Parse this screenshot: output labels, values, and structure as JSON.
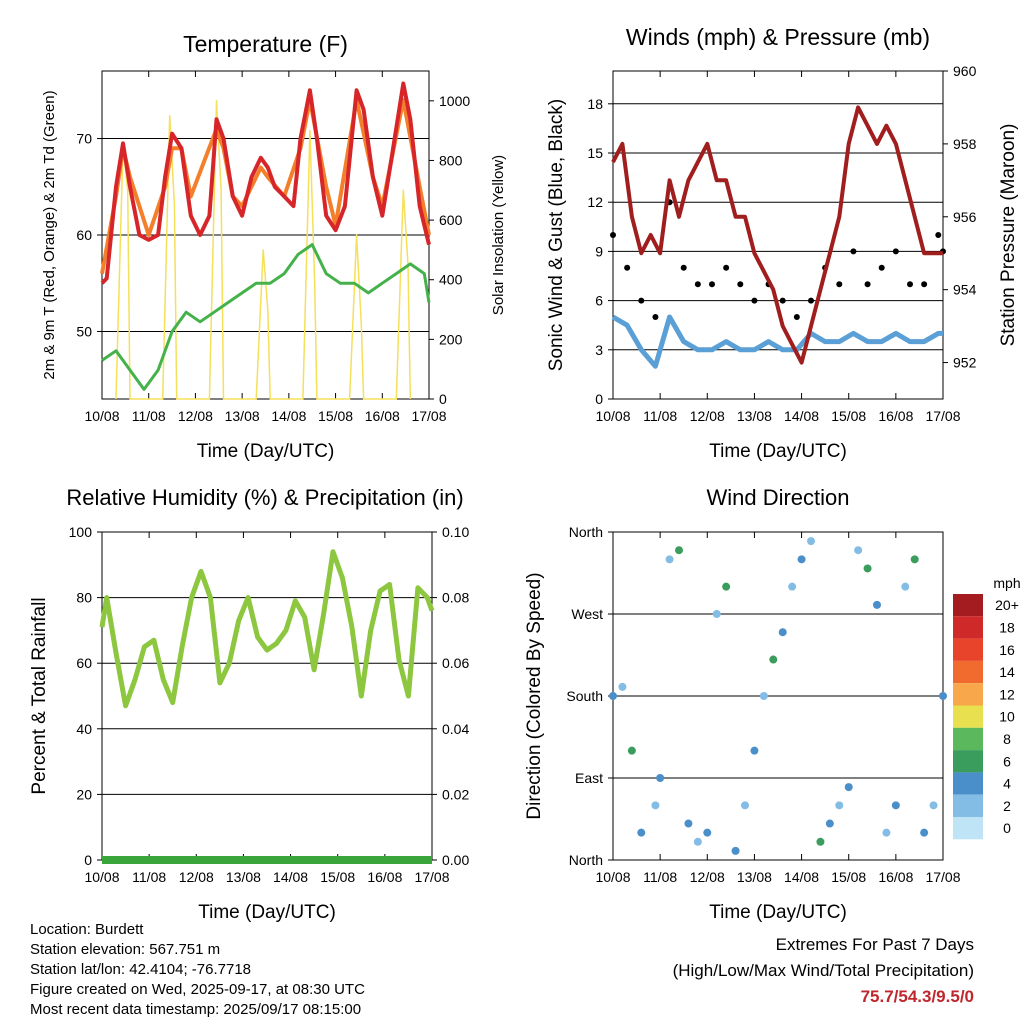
{
  "x_ticks": [
    "10/08",
    "11/08",
    "12/08",
    "13/08",
    "14/08",
    "15/08",
    "16/08",
    "17/08"
  ],
  "x_label": "Time (Day/UTC)",
  "panels": {
    "temperature": {
      "title": "Temperature (F)",
      "left_label": "2m & 9m T (Red, Orange) & 2m Td (Green)",
      "right_label": "Solar Insolation (Yellow)",
      "left_ticks": [
        "50",
        "60",
        "70"
      ],
      "right_ticks": [
        "0",
        "200",
        "400",
        "600",
        "800",
        "1000"
      ]
    },
    "winds": {
      "title": "Winds (mph) & Pressure (mb)",
      "left_label": "Sonic Wind & Gust (Blue, Black)",
      "right_label": "Station Pressure (Maroon)",
      "left_ticks": [
        "0",
        "3",
        "6",
        "9",
        "12",
        "15",
        "18"
      ],
      "right_ticks": [
        "952",
        "954",
        "956",
        "958",
        "960"
      ]
    },
    "humidity": {
      "title": "Relative Humidity (%) & Precipitation (in)",
      "left_label": "Percent & Total Rainfall",
      "left_ticks": [
        "0",
        "20",
        "40",
        "60",
        "80",
        "100"
      ],
      "right_ticks": [
        "0.00",
        "0.02",
        "0.04",
        "0.06",
        "0.08",
        "0.10"
      ]
    },
    "direction": {
      "title": "Wind Direction",
      "left_label": "Direction (Colored By Speed)",
      "left_ticks": [
        "North",
        "East",
        "South",
        "West",
        "North"
      ],
      "legend_title": "mph",
      "legend_labels": [
        "20+",
        "18",
        "16",
        "14",
        "12",
        "10",
        "8",
        "6",
        "4",
        "2",
        "0"
      ],
      "legend_colors": [
        "#a51c20",
        "#d0292a",
        "#e8432b",
        "#f26b2e",
        "#f8a84a",
        "#e8e04f",
        "#5cb85c",
        "#3a9d5d",
        "#4a8fc9",
        "#83bde6",
        "#bfe4f6"
      ]
    }
  },
  "colors": {
    "t2m": "#d6262a",
    "t9m": "#f47f2a",
    "td": "#44b14b",
    "solar": "#f5e05a",
    "wind": "#5a9fd6",
    "gust": "#000000",
    "pressure": "#a01e1e",
    "rh": "#8dc63f",
    "precip": "#3aa53a"
  },
  "info": {
    "location": "Location: Burdett",
    "elevation": "Station elevation: 567.751 m",
    "latlon": "Station lat/lon: 42.4104; -76.7718",
    "created": "Figure created on Wed, 2025-09-17, at 08:30 UTC",
    "recent": "Most recent data timestamp: 2025/09/17 08:15:00"
  },
  "extremes": {
    "title": "Extremes For Past 7 Days",
    "subtitle": "(High/Low/Max Wind/Total Precipitation)",
    "values": "75.7/54.3/9.5/0"
  },
  "chart_data": [
    {
      "type": "line",
      "title": "Temperature (F)",
      "xlabel": "Time (Day/UTC)",
      "ylabel": "2m & 9m T (Red, Orange) & 2m Td (Green)",
      "y2label": "Solar Insolation (Yellow)",
      "x_range_days": [
        0,
        7
      ],
      "ylim": [
        43,
        77
      ],
      "y2lim": [
        0,
        1100
      ],
      "series": [
        {
          "name": "2m T",
          "axis": "left",
          "x": [
            0,
            0.1,
            0.3,
            0.45,
            0.6,
            0.8,
            1.0,
            1.2,
            1.35,
            1.5,
            1.7,
            1.9,
            2.1,
            2.3,
            2.45,
            2.6,
            2.8,
            3.0,
            3.2,
            3.4,
            3.55,
            3.7,
            3.9,
            4.1,
            4.25,
            4.45,
            4.6,
            4.8,
            5.0,
            5.2,
            5.45,
            5.6,
            5.8,
            6.0,
            6.2,
            6.45,
            6.6,
            6.8,
            7.0
          ],
          "y": [
            55,
            55.5,
            65,
            69.5,
            65,
            60,
            59.5,
            60,
            66,
            70.5,
            69,
            62,
            60,
            62,
            72,
            70,
            64,
            62,
            66,
            68,
            67,
            65,
            64,
            63,
            70,
            75,
            70,
            62,
            60.5,
            63,
            75,
            73,
            66,
            62,
            68,
            75.7,
            72,
            63,
            59
          ]
        },
        {
          "name": "9m T",
          "axis": "left",
          "x": [
            0,
            0.3,
            0.45,
            0.6,
            0.8,
            1.0,
            1.35,
            1.5,
            1.7,
            1.9,
            2.45,
            2.6,
            2.8,
            3.0,
            3.4,
            3.55,
            3.9,
            4.25,
            4.45,
            4.8,
            5.0,
            5.45,
            5.8,
            6.0,
            6.45,
            6.8,
            7.0
          ],
          "y": [
            56,
            64,
            69,
            66,
            63,
            60,
            65,
            69,
            69,
            64,
            71,
            69,
            64,
            63,
            67,
            66,
            64,
            69,
            74,
            65,
            61,
            74,
            66,
            63,
            74,
            65,
            60
          ]
        },
        {
          "name": "2m Td",
          "axis": "left",
          "x": [
            0,
            0.3,
            0.6,
            0.9,
            1.2,
            1.5,
            1.8,
            2.1,
            2.4,
            2.7,
            3.0,
            3.3,
            3.6,
            3.9,
            4.2,
            4.5,
            4.8,
            5.1,
            5.4,
            5.7,
            6.0,
            6.3,
            6.6,
            6.9,
            7.0
          ],
          "y": [
            47,
            48,
            46,
            44,
            46,
            50,
            52,
            51,
            52,
            53,
            54,
            55,
            55,
            56,
            58,
            59,
            56,
            55,
            55,
            54,
            55,
            56,
            57,
            56,
            53
          ]
        },
        {
          "name": "Solar",
          "axis": "right",
          "x": [
            0.3,
            0.45,
            0.55,
            0.6,
            1.3,
            1.45,
            1.55,
            1.6,
            2.3,
            2.45,
            2.55,
            2.6,
            3.3,
            3.45,
            3.55,
            3.6,
            4.3,
            4.45,
            4.55,
            4.6,
            5.3,
            5.45,
            5.55,
            5.6,
            6.3,
            6.45,
            6.55,
            6.6
          ],
          "y": [
            0,
            850,
            700,
            0,
            0,
            950,
            650,
            0,
            0,
            1000,
            700,
            0,
            0,
            500,
            300,
            0,
            0,
            900,
            400,
            0,
            0,
            550,
            250,
            0,
            0,
            700,
            450,
            0
          ]
        }
      ]
    },
    {
      "type": "line",
      "title": "Winds (mph) & Pressure (mb)",
      "xlabel": "Time (Day/UTC)",
      "ylabel": "Sonic Wind & Gust (Blue, Black)",
      "y2label": "Station Pressure (Maroon)",
      "x_range_days": [
        0,
        7
      ],
      "ylim": [
        0,
        20
      ],
      "y2lim": [
        951,
        960
      ],
      "series": [
        {
          "name": "Pressure",
          "axis": "right",
          "x": [
            0,
            0.2,
            0.4,
            0.6,
            0.8,
            1.0,
            1.2,
            1.4,
            1.6,
            1.8,
            2.0,
            2.2,
            2.4,
            2.6,
            2.8,
            3.0,
            3.2,
            3.4,
            3.6,
            3.8,
            4.0,
            4.2,
            4.4,
            4.6,
            4.8,
            5.0,
            5.2,
            5.4,
            5.6,
            5.8,
            6.0,
            6.2,
            6.4,
            6.6,
            6.8,
            7.0
          ],
          "y": [
            957.5,
            958,
            956,
            955,
            955.5,
            955,
            957,
            956,
            957,
            957.5,
            958,
            957,
            957,
            956,
            956,
            955,
            954.5,
            954,
            953,
            952.5,
            952,
            953,
            954,
            955,
            956,
            958,
            959,
            958.5,
            958,
            958.5,
            958,
            957,
            956,
            955,
            955,
            955
          ]
        },
        {
          "name": "Wind",
          "axis": "left",
          "x": [
            0,
            0.3,
            0.6,
            0.9,
            1.2,
            1.5,
            1.8,
            2.1,
            2.4,
            2.7,
            3.0,
            3.3,
            3.6,
            3.9,
            4.2,
            4.5,
            4.8,
            5.1,
            5.4,
            5.7,
            6.0,
            6.3,
            6.6,
            6.9,
            7.0
          ],
          "y": [
            5,
            4.5,
            3,
            2,
            5,
            3.5,
            3,
            3,
            3.5,
            3,
            3,
            3.5,
            3,
            3,
            4,
            3.5,
            3.5,
            4,
            3.5,
            3.5,
            4,
            3.5,
            3.5,
            4,
            4
          ]
        },
        {
          "name": "Gust",
          "axis": "left",
          "x": [
            0,
            0.3,
            0.6,
            0.9,
            1.2,
            1.5,
            1.8,
            2.1,
            2.4,
            2.7,
            3.0,
            3.3,
            3.6,
            3.9,
            4.2,
            4.5,
            4.8,
            5.1,
            5.4,
            5.7,
            6.0,
            6.3,
            6.6,
            6.9,
            7.0
          ],
          "y": [
            10,
            8,
            6,
            5,
            12,
            8,
            7,
            7,
            8,
            7,
            6,
            7,
            6,
            5,
            6,
            8,
            7,
            9,
            7,
            8,
            9,
            7,
            7,
            10,
            9
          ]
        }
      ]
    },
    {
      "type": "line",
      "title": "Relative Humidity (%) & Precipitation (in)",
      "xlabel": "Time (Day/UTC)",
      "ylabel": "Percent & Total Rainfall",
      "x_range_days": [
        0,
        7
      ],
      "ylim": [
        0,
        100
      ],
      "y2lim": [
        0,
        0.1
      ],
      "series": [
        {
          "name": "RH",
          "axis": "left",
          "x": [
            0,
            0.1,
            0.3,
            0.5,
            0.7,
            0.9,
            1.1,
            1.3,
            1.5,
            1.7,
            1.9,
            2.1,
            2.3,
            2.5,
            2.7,
            2.9,
            3.1,
            3.3,
            3.5,
            3.7,
            3.9,
            4.1,
            4.3,
            4.5,
            4.7,
            4.9,
            5.1,
            5.3,
            5.5,
            5.7,
            5.9,
            6.1,
            6.3,
            6.5,
            6.7,
            6.9,
            7.0
          ],
          "y": [
            71,
            80,
            63,
            47,
            55,
            65,
            67,
            55,
            48,
            65,
            80,
            88,
            80,
            54,
            60,
            73,
            80,
            68,
            64,
            66,
            70,
            79,
            74,
            58,
            75,
            94,
            86,
            71,
            50,
            70,
            82,
            84,
            61,
            50,
            83,
            80,
            76
          ]
        },
        {
          "name": "Precipitation",
          "axis": "right",
          "x": [
            0,
            7
          ],
          "y": [
            0,
            0
          ]
        }
      ]
    },
    {
      "type": "scatter",
      "title": "Wind Direction",
      "xlabel": "Time (Day/UTC)",
      "ylabel": "Direction (Colored By Speed)",
      "x_range_days": [
        0,
        7
      ],
      "ylim": [
        0,
        360
      ],
      "series": [
        {
          "name": "Direction",
          "x": [
            0,
            0.2,
            0.4,
            0.6,
            0.9,
            1.0,
            1.2,
            1.4,
            1.6,
            1.8,
            2.0,
            2.2,
            2.4,
            2.6,
            2.8,
            3.0,
            3.2,
            3.4,
            3.6,
            3.8,
            4.0,
            4.2,
            4.4,
            4.6,
            4.8,
            5.0,
            5.2,
            5.4,
            5.6,
            5.8,
            6.0,
            6.2,
            6.4,
            6.6,
            6.8,
            7.0
          ],
          "y": [
            180,
            190,
            120,
            30,
            60,
            90,
            330,
            340,
            40,
            20,
            30,
            270,
            300,
            10,
            60,
            120,
            180,
            220,
            250,
            300,
            330,
            350,
            20,
            40,
            60,
            80,
            340,
            320,
            280,
            30,
            60,
            300,
            330,
            30,
            60,
            180
          ]
        }
      ]
    }
  ]
}
